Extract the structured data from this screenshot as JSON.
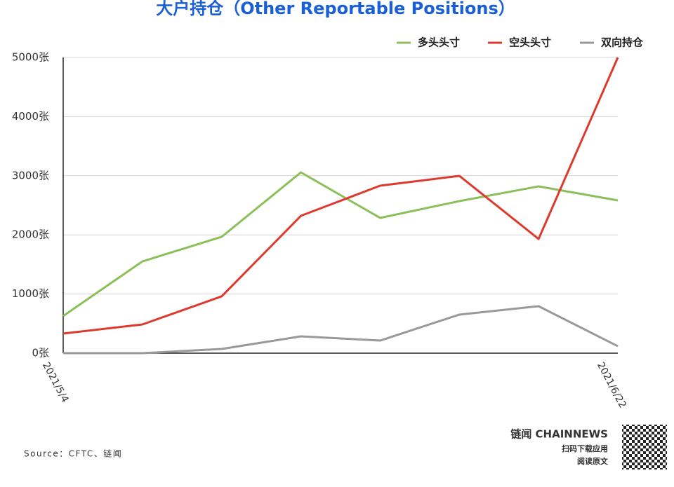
{
  "chart_data": {
    "type": "line",
    "title": "大户持仓（Other Reportable Positions）",
    "source": "Source：CFTC、链闻",
    "categories": [
      "2021/5/4",
      null,
      null,
      null,
      null,
      null,
      null,
      "2021/6/22"
    ],
    "series": [
      {
        "name": "多头头寸",
        "color": "#8cbf5a",
        "values": [
          628,
          1552,
          1967,
          3057,
          2287,
          2571,
          2820,
          2583
        ]
      },
      {
        "name": "空头头寸",
        "color": "#dc3a2e",
        "values": [
          332,
          486,
          960,
          2322,
          2832,
          2998,
          1931,
          5000
        ]
      },
      {
        "name": "双向持仓",
        "color": "#999999",
        "values": [
          0,
          0,
          71,
          284,
          213,
          652,
          794,
          118
        ]
      }
    ],
    "ylim": [
      0,
      5000
    ],
    "yticks": [
      {
        "value": 0,
        "label": "0张"
      },
      {
        "value": 1000,
        "label": "1000张"
      },
      {
        "value": 2000,
        "label": "2000张"
      },
      {
        "value": 3000,
        "label": "3000张"
      },
      {
        "value": 4000,
        "label": "4000张"
      },
      {
        "value": 5000,
        "label": "5000张"
      }
    ],
    "grid": true,
    "legend": "top-right"
  },
  "footer": {
    "brand": "链闻 CHAINNEWS",
    "scan": "扫码下载应用",
    "read": "阅读原文"
  }
}
